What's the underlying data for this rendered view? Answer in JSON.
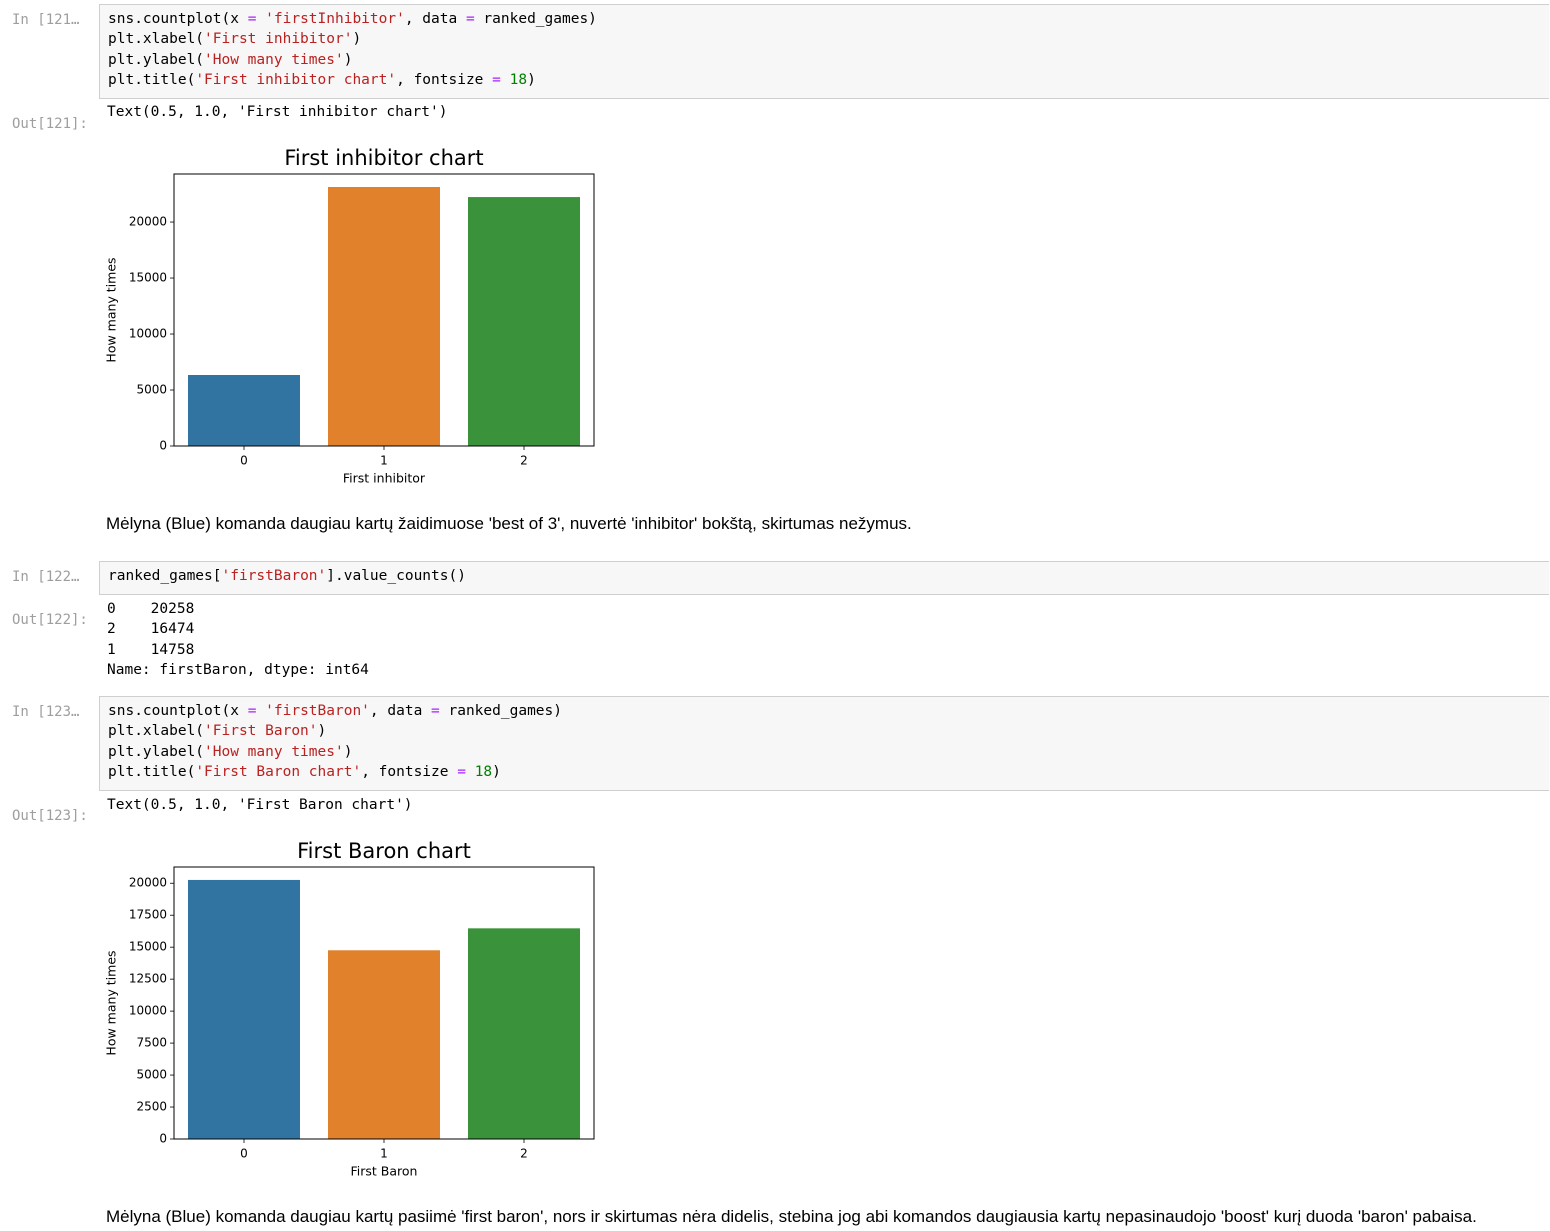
{
  "cells": [
    {
      "prompt": "In [121…",
      "code": [
        "sns.countplot(x = 'firstInhibitor', data = ranked_games)",
        "plt.xlabel('First inhibitor')",
        "plt.ylabel('How many times')",
        "plt.title('First inhibitor chart', fontsize = 18)"
      ],
      "out_prompt": "Out[121]:",
      "output": [
        "Text(0.5, 1.0, 'First inhibitor chart')"
      ],
      "markdown": "Mėlyna (Blue) komanda daugiau kartų žaidimuose 'best of 3', nuvertė 'inhibitor' bokštą, skirtumas nežymus."
    },
    {
      "prompt": "In [122…",
      "code": [
        "ranked_games['firstBaron'].value_counts()"
      ],
      "out_prompt": "Out[122]:",
      "output": [
        "0    20258",
        "2    16474",
        "1    14758",
        "Name: firstBaron, dtype: int64"
      ]
    },
    {
      "prompt": "In [123…",
      "code": [
        "sns.countplot(x = 'firstBaron', data = ranked_games)",
        "plt.xlabel('First Baron')",
        "plt.ylabel('How many times')",
        "plt.title('First Baron chart', fontsize = 18)"
      ],
      "out_prompt": "Out[123]:",
      "output": [
        "Text(0.5, 1.0, 'First Baron chart')"
      ],
      "markdown": "Mėlyna (Blue) komanda daugiau kartų pasiimė 'first baron', nors ir skirtumas nėra didelis, stebina jog abi komandos daugiausia kartų nepasinaudojo 'boost' kurį duoda 'baron' pabaisa."
    }
  ],
  "chart_data": [
    {
      "type": "bar",
      "title": "First inhibitor chart",
      "xlabel": "First inhibitor",
      "ylabel": "How many times",
      "categories": [
        "0",
        "1",
        "2"
      ],
      "values": [
        6340,
        23130,
        22230
      ],
      "colors": [
        "#3274a1",
        "#e1812c",
        "#3a923a"
      ],
      "ylim": [
        0,
        24290
      ],
      "yticks": [
        0,
        5000,
        10000,
        15000,
        20000
      ]
    },
    {
      "type": "bar",
      "title": "First Baron chart",
      "xlabel": "First Baron",
      "ylabel": "How many times",
      "categories": [
        "0",
        "1",
        "2"
      ],
      "values": [
        20258,
        14758,
        16474
      ],
      "colors": [
        "#3274a1",
        "#e1812c",
        "#3a923a"
      ],
      "ylim": [
        0,
        21270
      ],
      "yticks": [
        0,
        2500,
        5000,
        7500,
        10000,
        12500,
        15000,
        17500,
        20000
      ]
    }
  ]
}
